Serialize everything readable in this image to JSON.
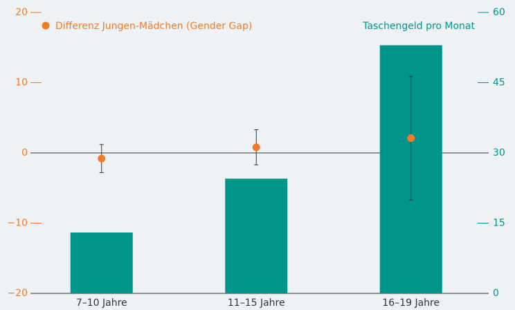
{
  "chart_data": {
    "type": "bar",
    "categories": [
      "7–10 Jahre",
      "11–15 Jahre",
      "16–19 Jahre"
    ],
    "series": [
      {
        "name": "Taschengeld pro Monat",
        "type": "bar",
        "color": "#00958a",
        "axis": "y2",
        "values": [
          13,
          24.5,
          53
        ]
      },
      {
        "name": "Differenz Jungen-Mädchen (Gender Gap)",
        "type": "scatter",
        "color": "#f07c2b",
        "values": [
          -0.8,
          0.8,
          2.1
        ],
        "errors": [
          2,
          2.5,
          8.8
        ]
      }
    ],
    "ylim": [
      -20,
      20
    ],
    "yticks": [
      {
        "value": -20,
        "label": "−20"
      },
      {
        "value": -10,
        "label": "−10"
      },
      0,
      10,
      20
    ],
    "y2lim": [
      0,
      60
    ],
    "y2ticks": [
      0,
      15,
      30,
      45,
      60
    ]
  }
}
